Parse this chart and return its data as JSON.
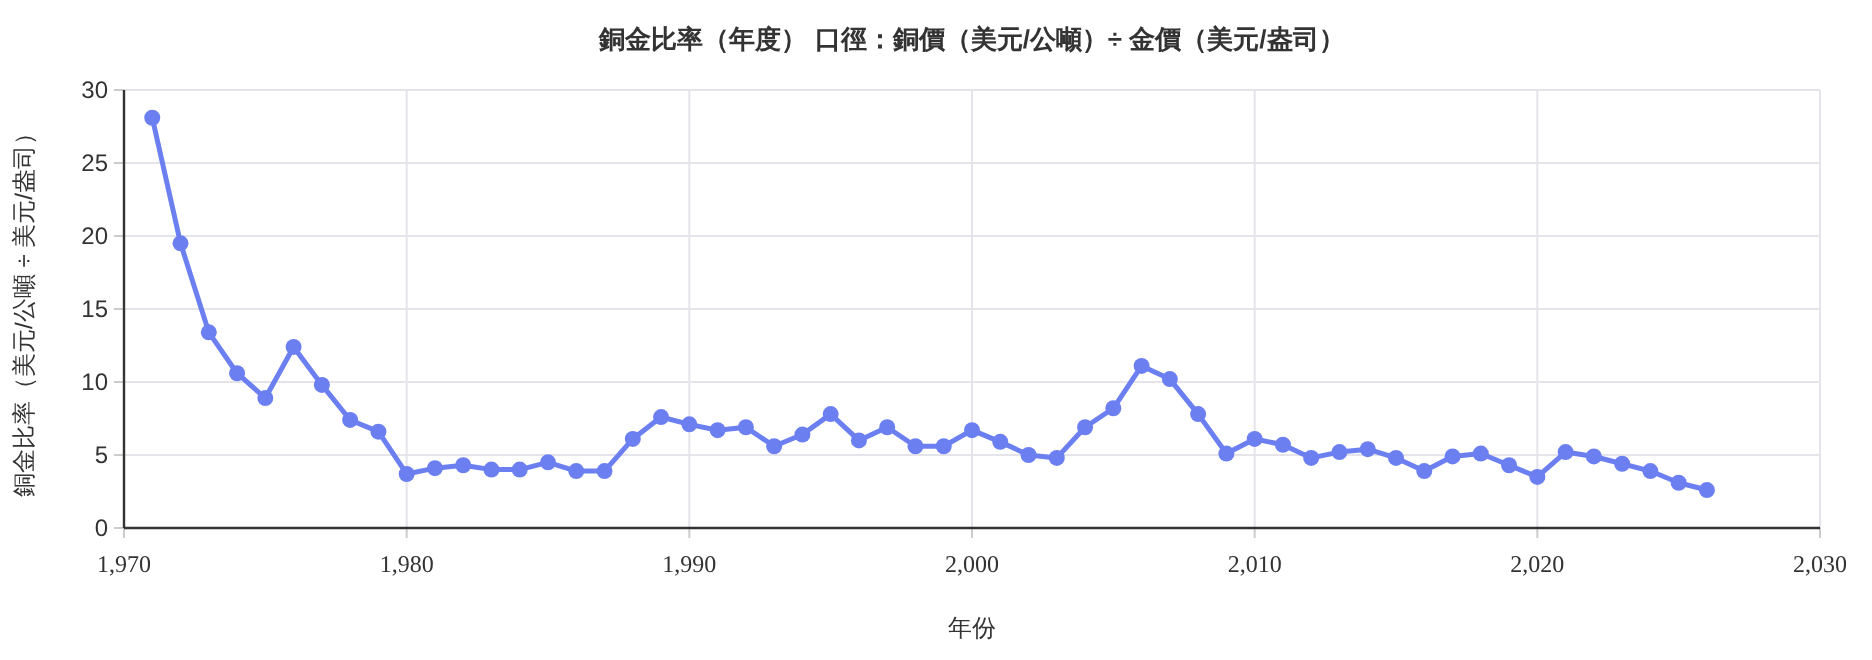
{
  "chart_data": {
    "type": "line",
    "title": "銅金比率（年度） 口徑：銅價（美元/公噸）÷ 金價（美元/盎司）",
    "xlabel": "年份",
    "ylabel": "銅金比率（美元/公噸 ÷ 美元/盎司）",
    "x": [
      1971,
      1972,
      1973,
      1974,
      1975,
      1976,
      1977,
      1978,
      1979,
      1980,
      1981,
      1982,
      1983,
      1984,
      1985,
      1986,
      1987,
      1988,
      1989,
      1990,
      1991,
      1992,
      1993,
      1994,
      1995,
      1996,
      1997,
      1998,
      1999,
      2000,
      2001,
      2002,
      2003,
      2004,
      2005,
      2006,
      2007,
      2008,
      2009,
      2010,
      2011,
      2012,
      2013,
      2014,
      2015,
      2016,
      2017,
      2018,
      2019,
      2020,
      2021,
      2022,
      2023,
      2024,
      2025,
      2026
    ],
    "series": [
      {
        "color": "#6b7ff0",
        "values": [
          28.1,
          19.5,
          13.4,
          10.6,
          8.9,
          12.4,
          9.8,
          7.4,
          6.6,
          3.7,
          4.1,
          4.3,
          4.0,
          4.0,
          4.5,
          3.9,
          3.9,
          6.1,
          7.6,
          7.1,
          6.7,
          6.9,
          5.6,
          6.4,
          7.8,
          6.0,
          6.9,
          5.6,
          5.6,
          6.7,
          5.9,
          5.0,
          4.8,
          6.9,
          8.2,
          11.1,
          10.2,
          7.8,
          5.1,
          6.1,
          5.7,
          4.8,
          5.2,
          5.4,
          4.8,
          3.9,
          4.9,
          5.1,
          4.3,
          3.5,
          5.2,
          4.9,
          4.4,
          3.9,
          3.1,
          2.6
        ]
      }
    ],
    "xlim": [
      1970,
      2030
    ],
    "ylim": [
      0,
      30
    ],
    "xticks": [
      {
        "value": 1970,
        "label": "1,970"
      },
      {
        "value": 1980,
        "label": "1,980"
      },
      {
        "value": 1990,
        "label": "1,990"
      },
      {
        "value": 2000,
        "label": "2,000"
      },
      {
        "value": 2010,
        "label": "2,010"
      },
      {
        "value": 2020,
        "label": "2,020"
      },
      {
        "value": 2030,
        "label": "2,030"
      }
    ],
    "yticks": [
      0,
      5,
      10,
      15,
      20,
      25,
      30
    ],
    "grid": true,
    "marker": "circle",
    "line_style": "solid"
  }
}
